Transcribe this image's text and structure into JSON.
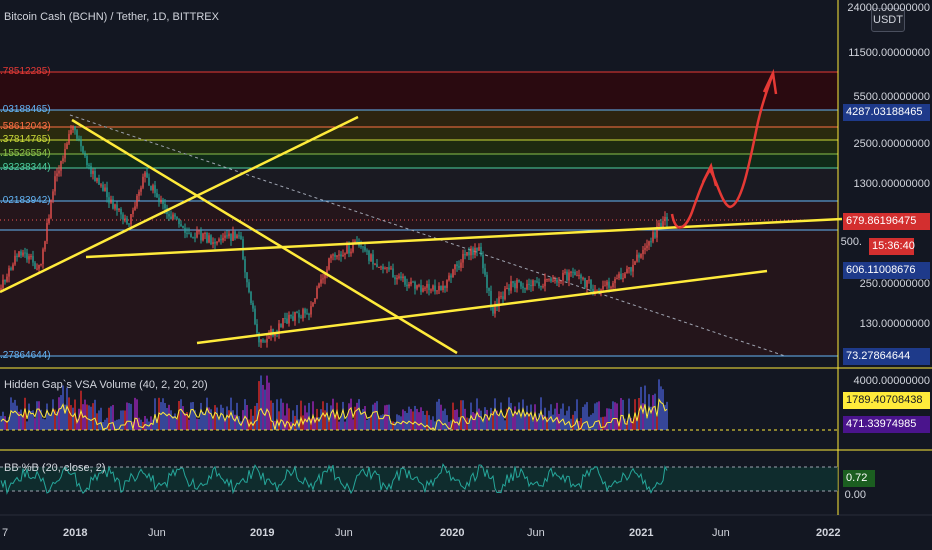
{
  "header": {
    "title": "Bitcoin Cash (BCHN) / Tether, 1D, BITTREX"
  },
  "currency_button": "USDT",
  "price_axis": {
    "labels": [
      "24000.00000000",
      "11500.00000000",
      "5500.00000000",
      "2500.00000000",
      "1300.00000000",
      "500.",
      "250.00000000",
      "130.00000000"
    ],
    "tags": {
      "level_top": "4287.03188465",
      "last_price": "679.86196475",
      "countdown": "15:36:40",
      "mid": "606.11008676",
      "bottom": "73.27864644"
    }
  },
  "fib_levels_left": [
    ".78512285)",
    ".03188465)",
    ".58612043)",
    ".37814765)",
    ".15526554)",
    ".93238344)",
    ".02183942)",
    ".27864644)"
  ],
  "volume_pane": {
    "title": "Hidden Gap`s VSA Volume (40, 2, 20, 20)",
    "axis_label": "4000.00000000",
    "tag_upper": "1789.40708438",
    "tag_lower": "471.33974985"
  },
  "bb_pane": {
    "title": "BB %B (20, close, 2)",
    "tag": "0.72",
    "axis_label": "0.00"
  },
  "time_axis": [
    {
      "label": "7",
      "bold": false
    },
    {
      "label": "2018",
      "bold": true
    },
    {
      "label": "Jun",
      "bold": false
    },
    {
      "label": "2019",
      "bold": true
    },
    {
      "label": "Jun",
      "bold": false
    },
    {
      "label": "2020",
      "bold": true
    },
    {
      "label": "Jun",
      "bold": false
    },
    {
      "label": "2021",
      "bold": true
    },
    {
      "label": "Jun",
      "bold": false
    },
    {
      "label": "2022",
      "bold": true
    }
  ],
  "colors": {
    "background": "#131722",
    "up": "#ef5350",
    "down": "#26a69a",
    "trendline": "#ffeb3b",
    "projection": "#e53935",
    "fib_blue": "#64b5f6",
    "tag_green": "#1b5e20",
    "tag_red": "#d32f2f",
    "tag_blue": "#1e3a8a",
    "tag_yellow": "#ffeb3b",
    "tag_purple": "#4a148c",
    "bb_line": "#26a69a"
  }
}
